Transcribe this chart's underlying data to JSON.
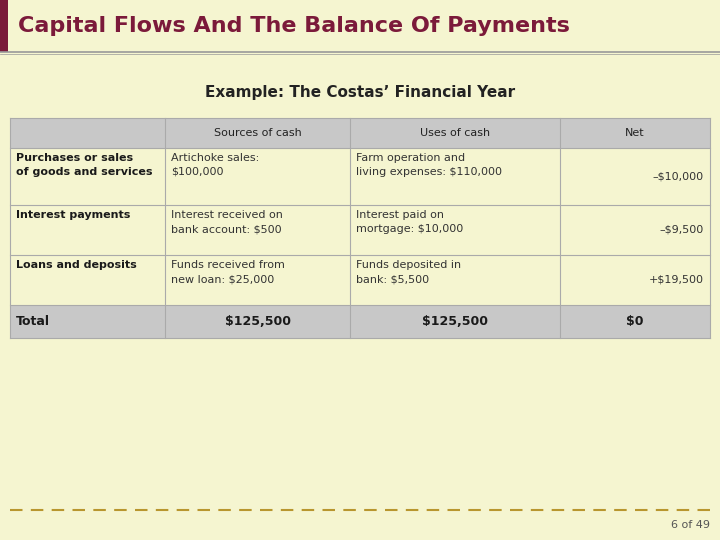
{
  "title": "Capital Flows And The Balance Of Payments",
  "subtitle": "Example: The Costas’ Financial Year",
  "bg_color": "#F5F5D0",
  "header_bg": "#C8C8C8",
  "title_color": "#7B1A3A",
  "title_bar_color": "#7B1A3A",
  "footer_text": "6 of 49",
  "col_headers": [
    "Sources of cash",
    "Uses of cash",
    "Net"
  ],
  "row_labels": [
    "Purchases or sales\nof goods and services",
    "Interest payments",
    "Loans and deposits",
    "Total"
  ],
  "sources": [
    "Artichoke sales:\n$100,000",
    "Interest received on\nbank account: $500",
    "Funds received from\nnew loan: $25,000",
    "$125,500"
  ],
  "uses": [
    "Farm operation and\nliving expenses: $110,000",
    "Interest paid on\nmortgage: $10,000",
    "Funds deposited in\nbank: $5,500",
    "$125,500"
  ],
  "net": [
    "–$10,000",
    "–$9,500",
    "+$19,500",
    "$0"
  ],
  "dashed_line_color": "#B8962E",
  "sep_line_color": "#999999",
  "table_line_color": "#AAAAAA"
}
